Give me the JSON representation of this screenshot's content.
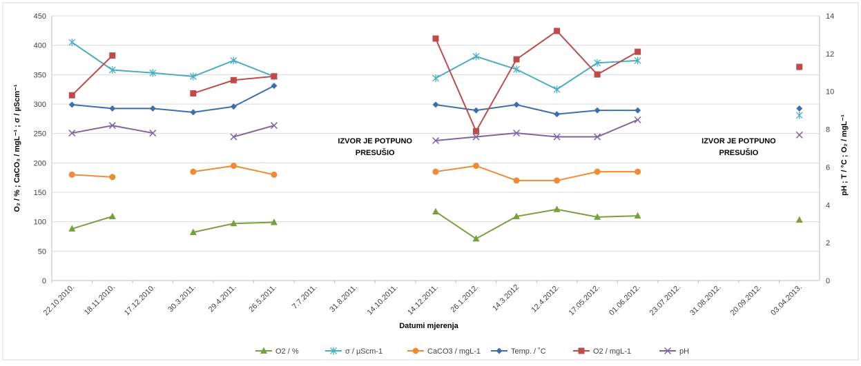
{
  "chart_data": {
    "type": "line",
    "categories": [
      "22.10.2010.",
      "18.11.2010.",
      "17.12.2010.",
      "30.3.2011.",
      "29.4.2011.",
      "26.5.2011.",
      "7.7.2011.",
      "31.8.2011.",
      "14.10.2011.",
      "14.12.2011.",
      "26.1.2012.",
      "14.3.2012",
      "12.4.2012.",
      "17.05.2012.",
      "01.06.2012.",
      "23.07.2012.",
      "31.08.2012.",
      "20.09.2012.",
      "03.04.2013."
    ],
    "xlabel": "Datumi mjerenja",
    "ylabel_left": "O₂ / % ; CaCO₃ / mgL⁻¹ ; σ / µScm⁻¹",
    "ylabel_right": "pH ; T / °C ; O₂ / mgL⁻¹",
    "y_left": {
      "min": 0,
      "max": 450,
      "step": 50,
      "ticks": [
        "0",
        "50",
        "100",
        "150",
        "200",
        "250",
        "300",
        "350",
        "400",
        "450"
      ]
    },
    "y_right": {
      "min": 0,
      "max": 14,
      "step": 2,
      "ticks": [
        "0",
        "2",
        "4",
        "6",
        "8",
        "10",
        "12",
        "14"
      ]
    },
    "grid": true,
    "legend_position": "bottom",
    "annotations": [
      {
        "lines": [
          "IZVOR JE POTPUNO",
          "PRESUŠIO"
        ],
        "category_index": 7.5
      },
      {
        "lines": [
          "IZVOR JE POTPUNO",
          "PRESUŠIO"
        ],
        "category_index": 16.5
      }
    ],
    "series": [
      {
        "name": "O2 / %",
        "axis": "left",
        "color": "#77a03f",
        "marker": "triangle",
        "values": [
          88,
          109,
          null,
          82,
          97,
          99,
          null,
          null,
          null,
          117,
          71,
          109,
          121,
          108,
          110,
          null,
          null,
          null,
          103
        ]
      },
      {
        "name": "σ / µScm-1",
        "axis": "left",
        "color": "#4aacc5",
        "marker": "star",
        "values": [
          405,
          358,
          353,
          347,
          374,
          347,
          null,
          null,
          null,
          344,
          381,
          359,
          325,
          370,
          374,
          null,
          null,
          null,
          281
        ]
      },
      {
        "name": "CaCO3 / mgL-1",
        "axis": "left",
        "color": "#f18b33",
        "marker": "circle",
        "values": [
          180,
          176,
          null,
          185,
          195,
          180,
          null,
          null,
          null,
          185,
          195,
          170,
          170,
          185,
          185,
          null,
          null,
          null,
          null
        ]
      },
      {
        "name": "Temp. / ˚C",
        "axis": "right",
        "color": "#3c6dac",
        "marker": "diamond",
        "values": [
          9.3,
          9.1,
          9.1,
          8.9,
          9.2,
          10.3,
          null,
          null,
          null,
          9.3,
          9.0,
          9.3,
          8.8,
          9.0,
          9.0,
          null,
          null,
          null,
          9.1
        ]
      },
      {
        "name": "O2 / mgL-1",
        "axis": "right",
        "color": "#be4b48",
        "marker": "square",
        "values": [
          9.8,
          11.9,
          null,
          9.9,
          10.6,
          10.8,
          null,
          null,
          null,
          12.8,
          7.9,
          11.7,
          13.2,
          10.9,
          12.1,
          null,
          null,
          null,
          11.3
        ]
      },
      {
        "name": "pH",
        "axis": "right",
        "color": "#7f64a2",
        "marker": "x",
        "values": [
          7.8,
          8.2,
          7.8,
          null,
          7.6,
          8.2,
          null,
          null,
          null,
          7.4,
          7.6,
          7.8,
          7.6,
          7.6,
          8.5,
          null,
          null,
          null,
          7.7
        ]
      }
    ]
  }
}
